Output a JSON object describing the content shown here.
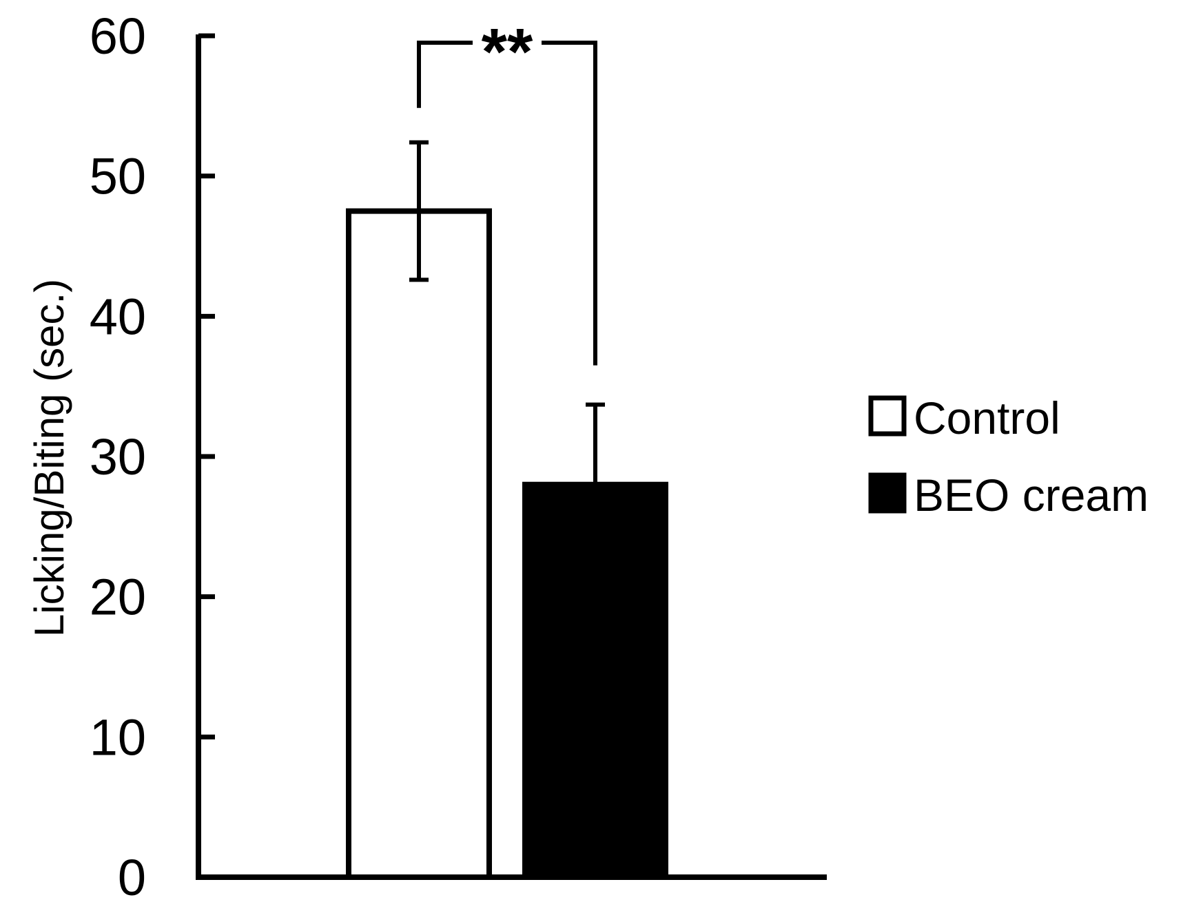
{
  "chart_data": {
    "type": "bar",
    "categories": [
      "Control",
      "BEO cream"
    ],
    "values": [
      47.5,
      28
    ],
    "errors": [
      4.9,
      5.7
    ],
    "ylabel": "Licking/Biting (sec.)",
    "ylim": [
      0,
      60
    ],
    "yticks": [
      "0",
      "10",
      "20",
      "30",
      "40",
      "50",
      "60"
    ],
    "grid": false,
    "legend_position": "right",
    "legend": [
      {
        "label": "Control",
        "fill": "#ffffff"
      },
      {
        "label": "BEO cream",
        "fill": "#000000"
      }
    ],
    "significance": {
      "label": "**",
      "between": [
        "Control",
        "BEO cream"
      ]
    }
  }
}
